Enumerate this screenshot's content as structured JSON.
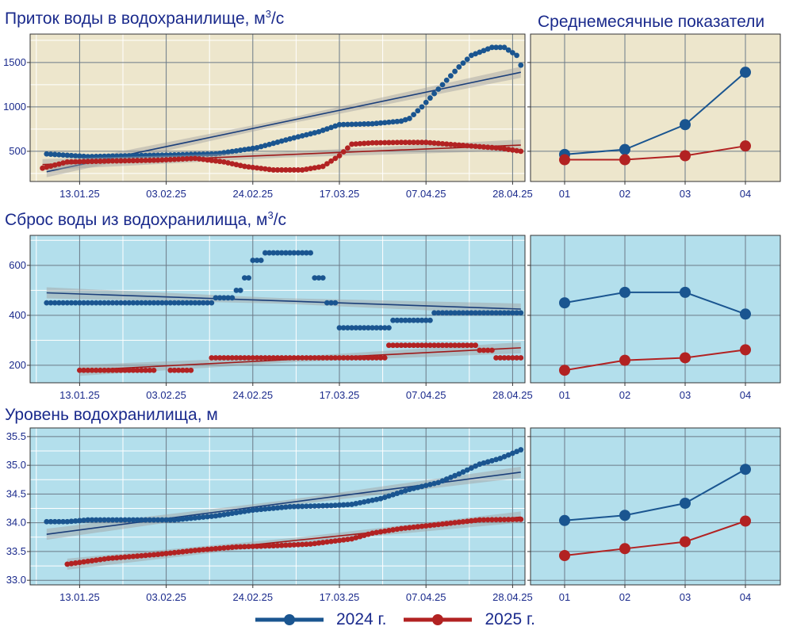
{
  "colors": {
    "s2024": "#1a5590",
    "s2025": "#b22222",
    "trend2024": "#1b3f7a",
    "trend2025": "#9e1a1a",
    "panel_bg_top": "#ede6cc",
    "panel_bg_blue": "#b3dfec",
    "grid_major": "#6b7a87",
    "grid_minor": "#ffffff",
    "title": "#1a2a8c",
    "tick": "#1a2a8c"
  },
  "titles": {
    "inflow_main": "Приток воды в водохранилище, м",
    "inflow_sup": "3",
    "inflow_tail": "/с",
    "monthly": "Среднемесячные показатели",
    "discharge_main": "Сброс воды из водохранилища, м",
    "discharge_sup": "3",
    "discharge_tail": "/с",
    "level": "Уровень водохранилища, м"
  },
  "legend": {
    "s2024": "2024 г.",
    "s2025": "2025 г."
  },
  "chart_data": [
    {
      "id": "inflow",
      "type": "scatter",
      "title": "Приток воды в водохранилище, м3/с",
      "x_axis": "date (day-month of year)",
      "x_ticks": [
        "13.01.25",
        "03.02.25",
        "24.02.25",
        "17.03.25",
        "07.04.25",
        "28.04.25"
      ],
      "xlim": [
        "2025-01-01",
        "2025-05-01"
      ],
      "ylim": [
        160,
        1820
      ],
      "y_ticks": [
        500,
        1000,
        1500
      ],
      "grid": true,
      "series": [
        {
          "name": "2024 г.",
          "points": [
            [
              "01-05",
              470
            ],
            [
              "01-15",
              440
            ],
            [
              "01-25",
              450
            ],
            [
              "02-05",
              460
            ],
            [
              "02-15",
              470
            ],
            [
              "02-25",
              540
            ],
            [
              "03-05",
              640
            ],
            [
              "03-12",
              720
            ],
            [
              "03-17",
              800
            ],
            [
              "03-25",
              810
            ],
            [
              "04-01",
              840
            ],
            [
              "04-03",
              870
            ],
            [
              "04-06",
              1000
            ],
            [
              "04-10",
              1200
            ],
            [
              "04-15",
              1450
            ],
            [
              "04-18",
              1580
            ],
            [
              "04-23",
              1670
            ],
            [
              "04-26",
              1670
            ],
            [
              "04-29",
              1580
            ],
            [
              "04-30",
              1470
            ]
          ],
          "trend": {
            "start": [
              "01-05",
              270
            ],
            "end": [
              "04-30",
              1390
            ]
          }
        },
        {
          "name": "2025 г.",
          "points": [
            [
              "01-04",
              310
            ],
            [
              "01-10",
              380
            ],
            [
              "01-20",
              390
            ],
            [
              "02-01",
              400
            ],
            [
              "02-10",
              420
            ],
            [
              "02-17",
              380
            ],
            [
              "02-22",
              330
            ],
            [
              "03-01",
              290
            ],
            [
              "03-08",
              290
            ],
            [
              "03-13",
              330
            ],
            [
              "03-17",
              450
            ],
            [
              "03-20",
              580
            ],
            [
              "03-25",
              595
            ],
            [
              "04-01",
              600
            ],
            [
              "04-07",
              600
            ],
            [
              "04-15",
              570
            ],
            [
              "04-25",
              535
            ],
            [
              "04-30",
              500
            ]
          ],
          "trend": {
            "start": [
              "01-04",
              350
            ],
            "end": [
              "04-30",
              570
            ]
          }
        }
      ]
    },
    {
      "id": "inflow_monthly",
      "type": "line",
      "x_ticks": [
        "01",
        "02",
        "03",
        "04"
      ],
      "ylim": [
        160,
        1820
      ],
      "grid": true,
      "series": [
        {
          "name": "2024 г.",
          "values": [
            465,
            520,
            800,
            1390
          ]
        },
        {
          "name": "2025 г.",
          "values": [
            405,
            405,
            450,
            560
          ]
        }
      ]
    },
    {
      "id": "discharge",
      "type": "scatter",
      "title": "Сброс воды из водохранилища, м3/с",
      "x_axis": "date (day-month of year)",
      "x_ticks": [
        "13.01.25",
        "03.02.25",
        "24.02.25",
        "17.03.25",
        "07.04.25",
        "28.04.25"
      ],
      "xlim": [
        "2025-01-01",
        "2025-05-01"
      ],
      "ylim": [
        130,
        720
      ],
      "y_ticks": [
        200,
        400,
        600
      ],
      "grid": true,
      "series": [
        {
          "name": "2024 г.",
          "steps": [
            [
              "01-05",
              "02-14",
              450
            ],
            [
              "02-15",
              "02-19",
              470
            ],
            [
              "02-20",
              "02-21",
              500
            ],
            [
              "02-22",
              "02-23",
              550
            ],
            [
              "02-24",
              "02-26",
              620
            ],
            [
              "02-27",
              "03-10",
              650
            ],
            [
              "03-11",
              "03-13",
              550
            ],
            [
              "03-14",
              "03-16",
              450
            ],
            [
              "03-17",
              "03-29",
              350
            ],
            [
              "03-30",
              "04-08",
              380
            ],
            [
              "04-09",
              "04-30",
              410
            ]
          ],
          "trend": {
            "start": [
              "01-05",
              490
            ],
            "end": [
              "04-30",
              425
            ]
          }
        },
        {
          "name": "2025 г.",
          "steps": [
            [
              "01-13",
              "01-31",
              180
            ],
            [
              "02-04",
              "02-09",
              180
            ],
            [
              "02-14",
              "03-28",
              230
            ],
            [
              "03-29",
              "04-19",
              280
            ],
            [
              "04-20",
              "04-23",
              260
            ],
            [
              "04-24",
              "04-30",
              230
            ]
          ],
          "trend": {
            "start": [
              "01-13",
              180
            ],
            "end": [
              "04-30",
              270
            ]
          }
        }
      ]
    },
    {
      "id": "discharge_monthly",
      "type": "line",
      "x_ticks": [
        "01",
        "02",
        "03",
        "04"
      ],
      "ylim": [
        130,
        720
      ],
      "grid": true,
      "series": [
        {
          "name": "2024 г.",
          "values": [
            450,
            492,
            492,
            405
          ]
        },
        {
          "name": "2025 г.",
          "values": [
            180,
            220,
            230,
            262
          ]
        }
      ]
    },
    {
      "id": "level",
      "type": "scatter",
      "title": "Уровень водохранилища, м",
      "x_axis": "date (day-month of year)",
      "x_ticks": [
        "13.01.25",
        "03.02.25",
        "24.02.25",
        "17.03.25",
        "07.04.25",
        "28.04.25"
      ],
      "xlim": [
        "2025-01-01",
        "2025-05-01"
      ],
      "ylim": [
        32.92,
        35.65
      ],
      "y_ticks": [
        33.0,
        33.5,
        34.0,
        34.5,
        35.0,
        35.5
      ],
      "y_tick_labels": [
        "33.0",
        "33.5",
        "34.0",
        "34.5",
        "35.0",
        "35.5"
      ],
      "grid": true,
      "series": [
        {
          "name": "2024 г.",
          "points": [
            [
              "01-05",
              34.02
            ],
            [
              "01-10",
              34.02
            ],
            [
              "01-15",
              34.05
            ],
            [
              "01-25",
              34.05
            ],
            [
              "02-05",
              34.05
            ],
            [
              "02-15",
              34.12
            ],
            [
              "02-24",
              34.22
            ],
            [
              "03-05",
              34.28
            ],
            [
              "03-15",
              34.3
            ],
            [
              "03-20",
              34.32
            ],
            [
              "03-27",
              34.42
            ],
            [
              "04-03",
              34.58
            ],
            [
              "04-10",
              34.7
            ],
            [
              "04-15",
              34.85
            ],
            [
              "04-20",
              35.02
            ],
            [
              "04-25",
              35.12
            ],
            [
              "04-30",
              35.27
            ]
          ],
          "trend": {
            "start": [
              "01-05",
              33.8
            ],
            "end": [
              "04-30",
              34.88
            ]
          }
        },
        {
          "name": "2025 г.",
          "points": [
            [
              "01-10",
              33.28
            ],
            [
              "01-20",
              33.38
            ],
            [
              "02-01",
              33.45
            ],
            [
              "02-10",
              33.52
            ],
            [
              "02-20",
              33.58
            ],
            [
              "03-01",
              33.6
            ],
            [
              "03-10",
              33.63
            ],
            [
              "03-20",
              33.72
            ],
            [
              "03-25",
              33.82
            ],
            [
              "04-01",
              33.9
            ],
            [
              "04-10",
              33.97
            ],
            [
              "04-20",
              34.05
            ],
            [
              "04-30",
              34.06
            ]
          ],
          "trend": {
            "start": [
              "01-10",
              33.28
            ],
            "end": [
              "04-30",
              34.1
            ]
          }
        }
      ]
    },
    {
      "id": "level_monthly",
      "type": "line",
      "x_ticks": [
        "01",
        "02",
        "03",
        "04"
      ],
      "ylim": [
        32.92,
        35.65
      ],
      "grid": true,
      "series": [
        {
          "name": "2024 г.",
          "values": [
            34.04,
            34.13,
            34.34,
            34.93
          ]
        },
        {
          "name": "2025 г.",
          "values": [
            33.43,
            33.55,
            33.67,
            34.03
          ]
        }
      ]
    }
  ]
}
